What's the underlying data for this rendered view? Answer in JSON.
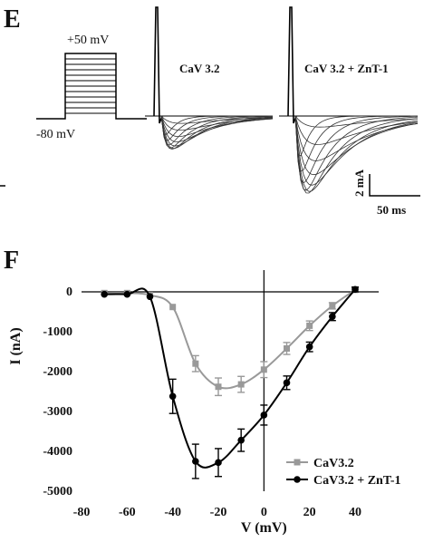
{
  "panel_e": {
    "letter": "E",
    "protocol": {
      "top_label": "+50 mV",
      "hold_label": "-80 mV"
    },
    "trace1_label": "CaV 3.2",
    "trace2_label": "CaV 3.2 + ZnT-1",
    "scale_y": "2 mA",
    "scale_x": "50 ms"
  },
  "chart_data": {
    "panel": "F",
    "type": "scatter",
    "xlabel": "V (mV)",
    "ylabel": "I (nA)",
    "xlim": [
      -80,
      40
    ],
    "ylim": [
      -5000,
      0
    ],
    "x_ticks": [
      -80,
      -60,
      -40,
      -20,
      0,
      20,
      40
    ],
    "y_ticks": [
      0,
      -1000,
      -2000,
      -3000,
      -4000,
      -5000
    ],
    "legend_position": "bottom-right",
    "grid": false,
    "x": [
      -70,
      -60,
      -50,
      -40,
      -30,
      -20,
      -10,
      0,
      10,
      20,
      30,
      40
    ],
    "series": [
      {
        "name": "CaV3.2",
        "color": "#999999",
        "marker": "square",
        "values": [
          -30,
          -30,
          -80,
          -380,
          -1800,
          -2380,
          -2320,
          -1950,
          -1420,
          -850,
          -350,
          50
        ],
        "errors": [
          0,
          0,
          0,
          0,
          200,
          220,
          200,
          200,
          150,
          120,
          80,
          50
        ]
      },
      {
        "name": "CaV3.2 + ZnT-1",
        "color": "#000000",
        "marker": "circle",
        "values": [
          -60,
          -60,
          -120,
          -2620,
          -4250,
          -4280,
          -3720,
          -3090,
          -2280,
          -1380,
          -620,
          60
        ],
        "errors": [
          0,
          0,
          0,
          430,
          430,
          350,
          280,
          250,
          170,
          120,
          100,
          60
        ]
      }
    ]
  }
}
